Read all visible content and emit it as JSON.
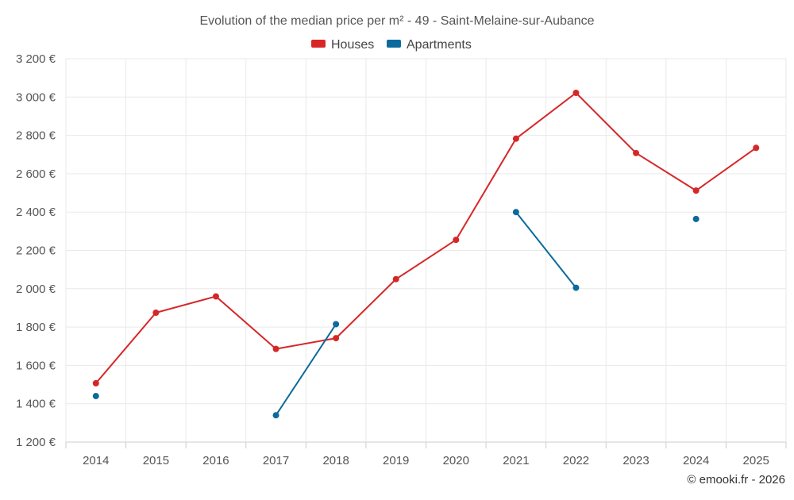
{
  "chart_data": {
    "type": "line",
    "title": "Evolution of the median price per m² - 49 - Saint-Melaine-sur-Aubance",
    "categories": [
      "2014",
      "2015",
      "2016",
      "2017",
      "2018",
      "2019",
      "2020",
      "2021",
      "2022",
      "2023",
      "2024",
      "2025"
    ],
    "ylim": [
      1200,
      3200
    ],
    "yticks": [
      1200,
      1400,
      1600,
      1800,
      2000,
      2200,
      2400,
      2600,
      2800,
      3000,
      3200
    ],
    "ytick_labels": [
      "1 200 €",
      "1 400 €",
      "1 600 €",
      "1 800 €",
      "2 000 €",
      "2 200 €",
      "2 400 €",
      "2 600 €",
      "2 800 €",
      "3 000 €",
      "3 200 €"
    ],
    "legend_position": "top-center",
    "grid": true,
    "series": [
      {
        "name": "Houses",
        "color": "#d62728",
        "values": [
          1507,
          1875,
          1960,
          1686,
          1742,
          2050,
          2255,
          2783,
          3022,
          2708,
          2512,
          2735
        ]
      },
      {
        "name": "Apartments",
        "color": "#0d6a9c",
        "values": [
          1440,
          null,
          null,
          1340,
          1815,
          null,
          null,
          2400,
          2005,
          null,
          2364,
          null
        ]
      }
    ],
    "credit": "© emooki.fr - 2026"
  }
}
